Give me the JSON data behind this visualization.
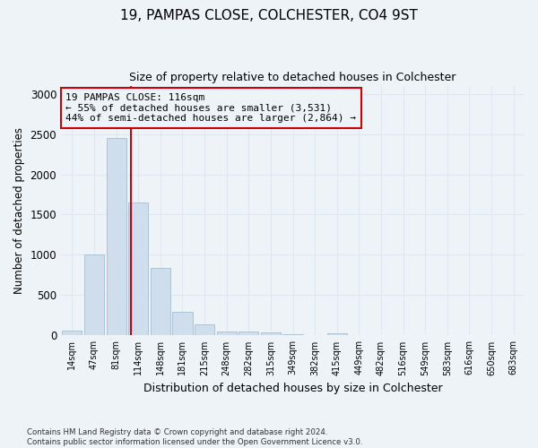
{
  "title": "19, PAMPAS CLOSE, COLCHESTER, CO4 9ST",
  "subtitle": "Size of property relative to detached houses in Colchester",
  "xlabel": "Distribution of detached houses by size in Colchester",
  "ylabel": "Number of detached properties",
  "categories": [
    "14sqm",
    "47sqm",
    "81sqm",
    "114sqm",
    "148sqm",
    "181sqm",
    "215sqm",
    "248sqm",
    "282sqm",
    "315sqm",
    "349sqm",
    "382sqm",
    "415sqm",
    "449sqm",
    "482sqm",
    "516sqm",
    "549sqm",
    "583sqm",
    "616sqm",
    "650sqm",
    "683sqm"
  ],
  "values": [
    55,
    1000,
    2450,
    1650,
    840,
    290,
    140,
    50,
    50,
    35,
    20,
    0,
    30,
    0,
    0,
    0,
    0,
    0,
    0,
    0,
    0
  ],
  "bar_color": "#cfdded",
  "bar_edgecolor": "#a8c4d8",
  "grid_color": "#dde8f0",
  "property_line_x": 2.67,
  "annotation_text": "19 PAMPAS CLOSE: 116sqm\n← 55% of detached houses are smaller (3,531)\n44% of semi-detached houses are larger (2,864) →",
  "annotation_box_color": "#cc0000",
  "ylim": [
    0,
    3100
  ],
  "yticks": [
    0,
    500,
    1000,
    1500,
    2000,
    2500,
    3000
  ],
  "footnote": "Contains HM Land Registry data © Crown copyright and database right 2024.\nContains public sector information licensed under the Open Government Licence v3.0.",
  "bg_color": "#eef3f8"
}
